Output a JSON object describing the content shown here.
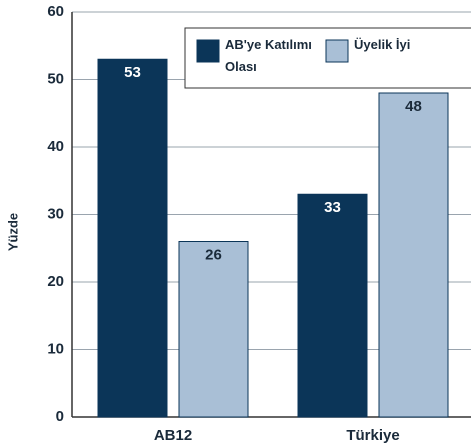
{
  "chart_data": {
    "type": "bar",
    "y_label": "Yüzde",
    "categories": [
      "AB12",
      "Türkiye"
    ],
    "series": [
      {
        "name": "AB'ye Katılımı Olası",
        "color": "#0b3558",
        "values": [
          53,
          33
        ]
      },
      {
        "name": "Üyelik İyi",
        "color": "#a9bfd6",
        "values": [
          26,
          48
        ]
      }
    ],
    "ylim": [
      0,
      60
    ],
    "yticks": [
      0,
      10,
      20,
      30,
      40,
      50,
      60
    ],
    "grid": true,
    "legend": "top-right"
  }
}
